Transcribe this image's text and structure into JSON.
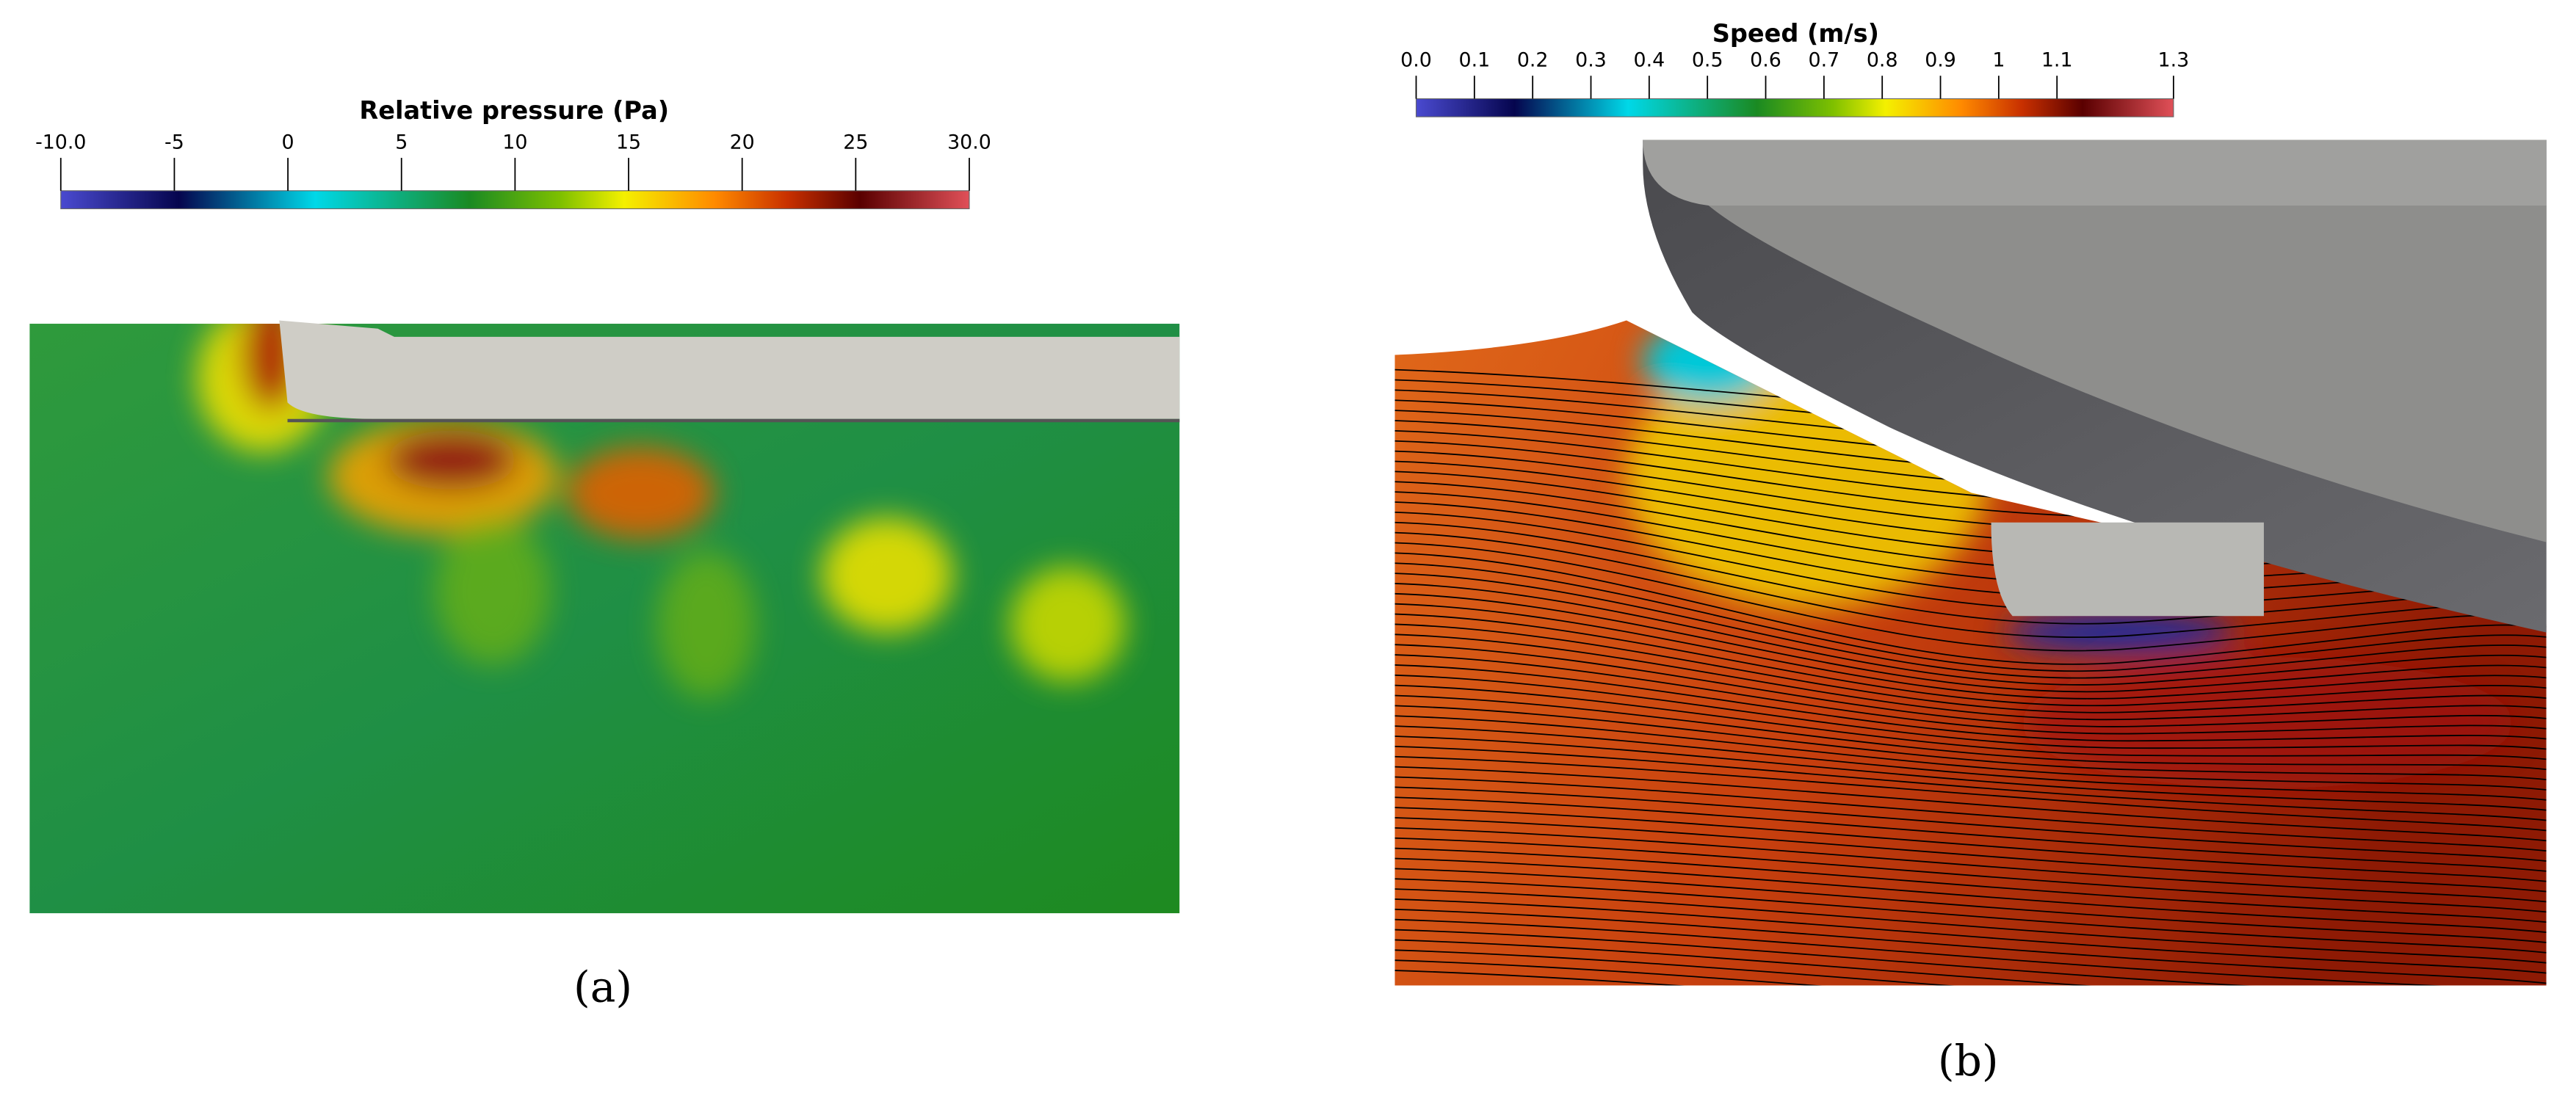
{
  "panels": [
    {
      "colorbar": {
        "title": "Relative pressure (Pa)",
        "range": [
          -10,
          30
        ],
        "ticks": [
          {
            "value": -10,
            "label": "-10.0"
          },
          -5,
          0,
          5,
          10,
          15,
          20,
          25,
          {
            "value": 30,
            "label": "30.0"
          }
        ]
      },
      "caption": "(a)"
    },
    {
      "colorbar": {
        "title": "Speed (m/s)",
        "range": [
          0,
          1.3
        ],
        "ticks": [
          {
            "value": 0,
            "label": "0.0"
          },
          0.1,
          0.2,
          0.3,
          0.4,
          0.5,
          0.6,
          0.7,
          0.8,
          0.9,
          1,
          1.1,
          1.3
        ]
      },
      "caption": "(b)"
    }
  ]
}
